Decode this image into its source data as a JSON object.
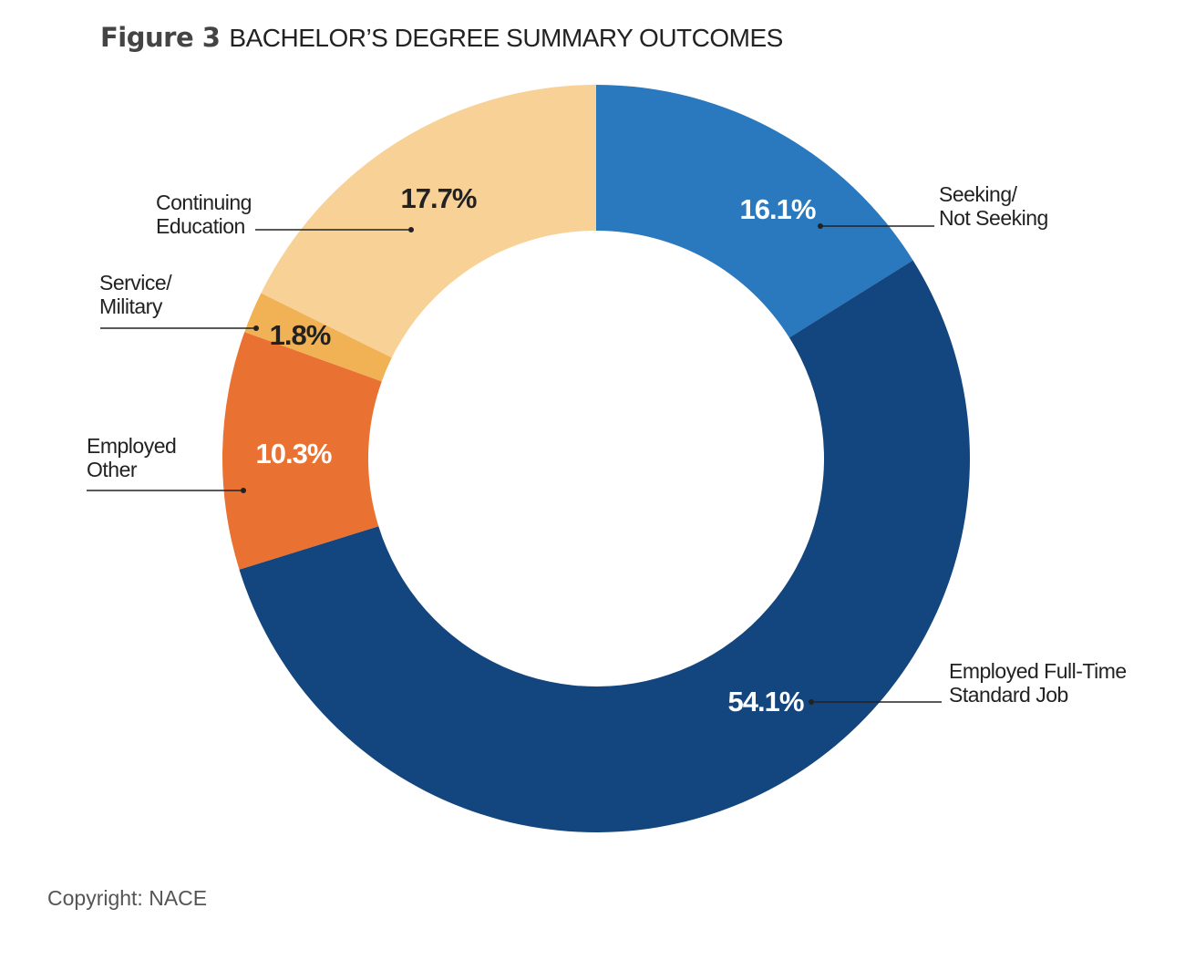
{
  "chart_data": {
    "type": "pie",
    "donut": true,
    "title_prefix": "Figure 3",
    "title": "BACHELOR’S DEGREE SUMMARY OUTCOMES",
    "start": "12 o'clock, clockwise",
    "categories": [
      "Seeking/ Not Seeking",
      "Employed Full-Time Standard Job",
      "Employed Other",
      "Service/ Military",
      "Continuing Education"
    ],
    "label_lines": [
      [
        "Seeking/",
        "Not Seeking"
      ],
      [
        "Employed Full-Time",
        "Standard Job"
      ],
      [
        "Employed",
        "Other"
      ],
      [
        "Service/",
        "Military"
      ],
      [
        "Continuing",
        "Education"
      ]
    ],
    "values": [
      16.1,
      54.1,
      10.3,
      1.8,
      17.7
    ],
    "value_labels": [
      "16.1%",
      "54.1%",
      "10.3%",
      "1.8%",
      "17.7%"
    ],
    "colors": [
      "#2a78be",
      "#13457e",
      "#e97132",
      "#f0b254",
      "#f8d196"
    ],
    "label_colors": [
      "#ffffff",
      "#ffffff",
      "#ffffff",
      "#222222",
      "#222222"
    ]
  },
  "footer": {
    "copyright": "Copyright: NACE"
  }
}
